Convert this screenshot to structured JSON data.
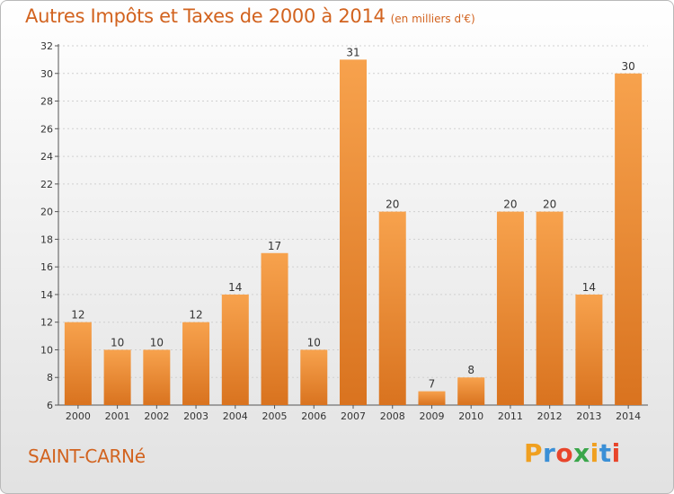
{
  "title": "Autres Impôts et Taxes de 2000 à 2014",
  "subtitle": "(en milliers d'€)",
  "city": "SAINT-CARNé",
  "brand": {
    "letters": [
      "P",
      "r",
      "o",
      "x",
      "i",
      "t",
      "i"
    ],
    "colors": [
      "#f0a020",
      "#3a8fd6",
      "#e8452b",
      "#3aa64a",
      "#f0a020",
      "#3a8fd6",
      "#e8452b"
    ]
  },
  "colors": {
    "bar_light": "#f7a24d",
    "bar_dark": "#d9731f",
    "title": "#d2631f",
    "grid": "#d0d0d0",
    "axis": "#555555"
  },
  "chart_data": {
    "type": "bar",
    "categories": [
      "2000",
      "2001",
      "2002",
      "2003",
      "2004",
      "2005",
      "2006",
      "2007",
      "2008",
      "2009",
      "2010",
      "2011",
      "2012",
      "2013",
      "2014"
    ],
    "values": [
      12,
      10,
      10,
      12,
      14,
      17,
      10,
      31,
      20,
      7,
      8,
      20,
      20,
      14,
      30
    ],
    "data_labels": [
      "12",
      "10",
      "10",
      "12",
      "14",
      "17",
      "10",
      "31",
      "20",
      "7",
      "8",
      "20",
      "20",
      "14",
      "30"
    ],
    "y_ticks": [
      "6",
      "8",
      "10",
      "12",
      "14",
      "16",
      "18",
      "20",
      "22",
      "24",
      "26",
      "28",
      "30",
      "32"
    ],
    "ylim": [
      6,
      32
    ],
    "grid": true,
    "legend": "none"
  }
}
